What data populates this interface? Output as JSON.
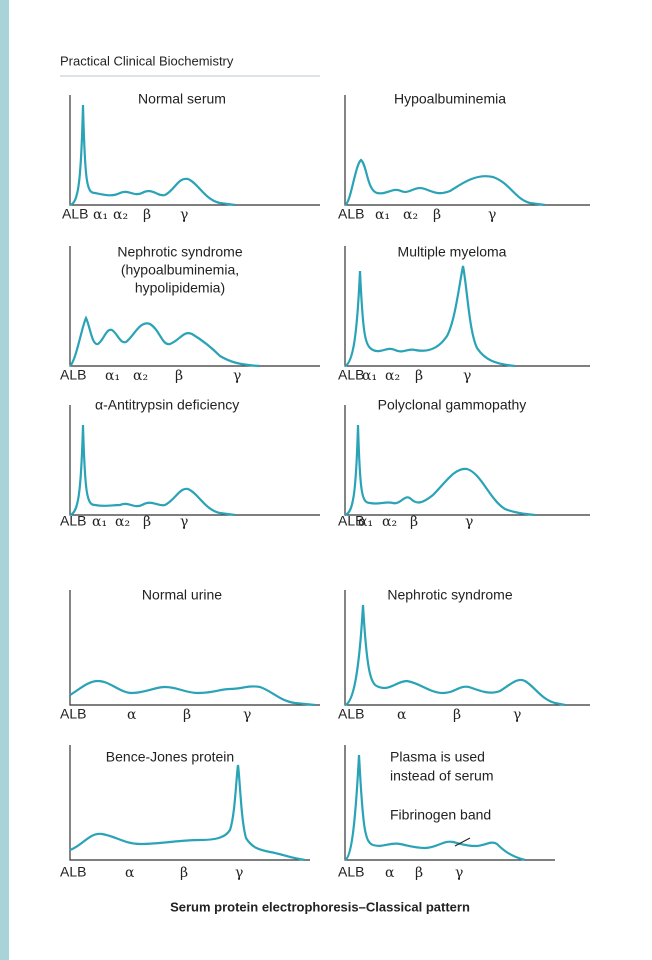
{
  "header": {
    "title": "Practical Clinical Biochemistry"
  },
  "panels": [
    {
      "title": [
        "Normal serum"
      ],
      "labels": [
        "ALB",
        "α₁",
        "α₂",
        "β",
        "γ"
      ]
    },
    {
      "title": [
        "Hypoalbuminemia"
      ],
      "labels": [
        "ALB",
        "α₁",
        "α₂",
        "β",
        "γ"
      ]
    },
    {
      "title": [
        "Nephrotic syndrome",
        "(hypoalbuminemia,",
        "hypolipidemia)"
      ],
      "labels": [
        "ALB",
        "α₁",
        "α₂",
        "β",
        "γ"
      ]
    },
    {
      "title": [
        "Multiple myeloma"
      ],
      "labels": [
        "ALB",
        "α₁",
        "α₂",
        "β",
        "γ"
      ]
    },
    {
      "title": [
        "α-Antitrypsin deficiency"
      ],
      "labels": [
        "ALB",
        "α₁",
        "α₂",
        "β",
        "γ"
      ]
    },
    {
      "title": [
        "Polyclonal gammopathy"
      ],
      "labels": [
        "ALB",
        "α₁",
        "α₂",
        "β",
        "γ"
      ]
    },
    {
      "title": [
        "Normal urine"
      ],
      "labels": [
        "ALB",
        "α",
        "β",
        "γ"
      ]
    },
    {
      "title": [
        "Nephrotic syndrome"
      ],
      "labels": [
        "ALB",
        "α",
        "β",
        "γ"
      ]
    },
    {
      "title": [
        "Bence-Jones protein"
      ],
      "labels": [
        "ALB",
        "α",
        "β",
        "γ"
      ]
    },
    {
      "title": [
        "Plasma is used",
        "instead of serum"
      ],
      "annotation": "Fibrinogen band",
      "labels": [
        "ALB",
        "α",
        "β",
        "γ"
      ]
    }
  ],
  "caption": "Serum protein electrophoresis–Classical pattern"
}
